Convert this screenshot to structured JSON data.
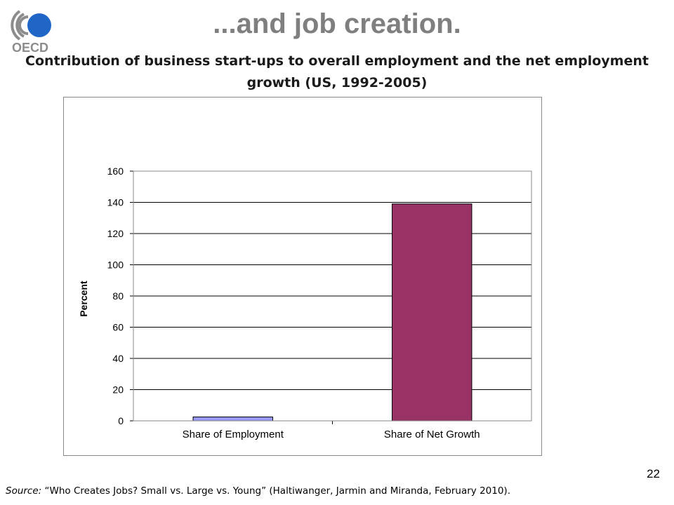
{
  "header": {
    "slide_title": "...and job creation.",
    "logo_text": "OECD",
    "page_number": "22"
  },
  "chart_title": "Contribution of business start-ups to overall employment and the net employment growth (US, 1992-2005)",
  "chart_data": {
    "type": "bar",
    "title": "Contribution of business start-ups to overall employment and the net employment growth (US, 1992-2005)",
    "categories": [
      "Share of Employment",
      "Share of Net Growth"
    ],
    "values": [
      2.5,
      139
    ],
    "bar_colors": [
      "#9999ff",
      "#993366"
    ],
    "xlabel": "",
    "ylabel": "Percent",
    "ylim": [
      0,
      160
    ],
    "yticks": [
      0,
      20,
      40,
      60,
      80,
      100,
      120,
      140,
      160
    ],
    "grid": true,
    "legend": "none"
  },
  "footer": {
    "source_label": "Source:",
    "source_text": " “Who Creates Jobs?  Small vs. Large vs. Young”  (Haltiwanger, Jarmin and Miranda, February 2010)."
  },
  "colors": {
    "title_gray": "#7f7f7f",
    "logo_blue": "#1f66c7",
    "logo_gray": "#8c8c8c"
  }
}
